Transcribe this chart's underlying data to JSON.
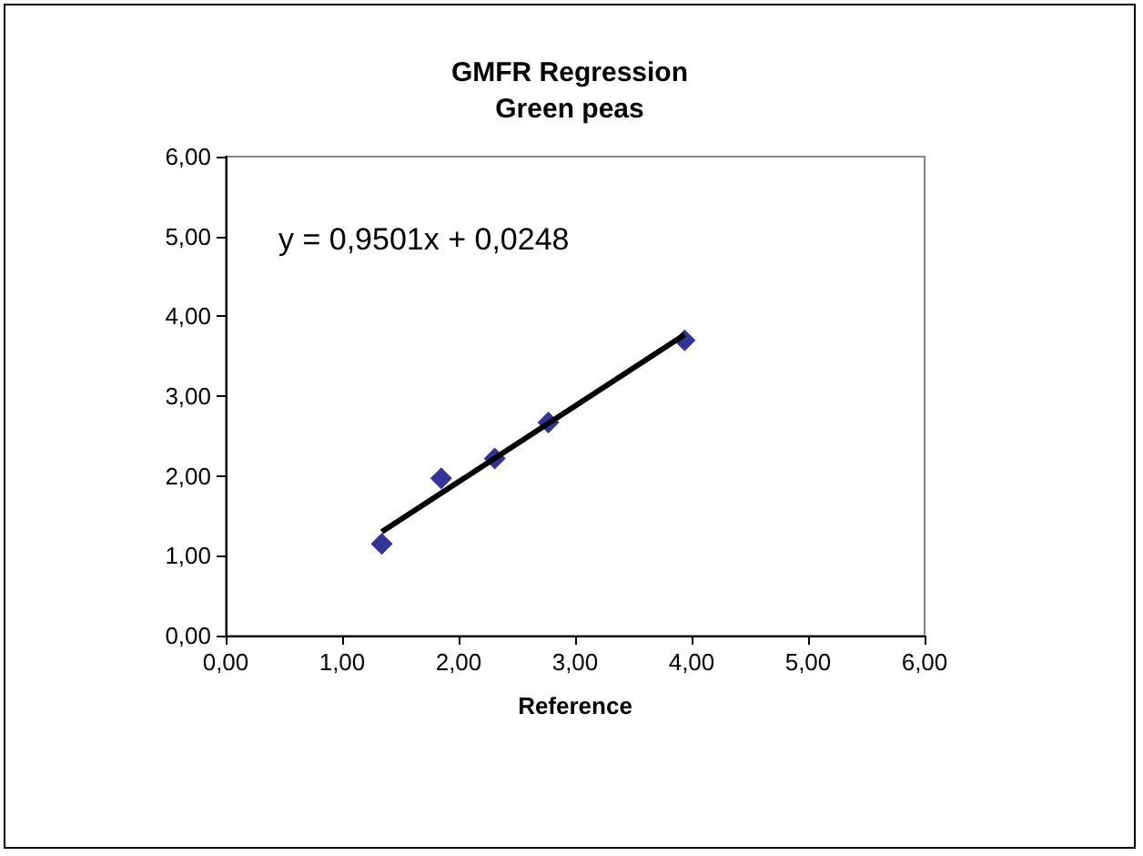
{
  "chart_data": {
    "type": "scatter",
    "title": "GMFR Regression\nGreen peas",
    "xlabel": "Reference",
    "annotations": [
      "y = 0,9501x + 0,0248"
    ],
    "marker": "diamond",
    "grid": false,
    "x": [
      1.34,
      1.85,
      2.31,
      2.77,
      3.94
    ],
    "series": [
      {
        "color": "#000080",
        "values": [
          1.15,
          1.97,
          2.22,
          2.67,
          3.7
        ]
      },
      {
        "type": "line",
        "color": "#000000",
        "marker": "none",
        "x": [
          1.34,
          3.94
        ],
        "values": [
          1.3,
          3.77
        ]
      }
    ],
    "xlim": [
      0,
      6
    ],
    "ylim": [
      0,
      6
    ],
    "xticks": [
      {
        "value": 0,
        "label": "0,00"
      },
      {
        "value": 1,
        "label": "1,00"
      },
      {
        "value": 2,
        "label": "2,00"
      },
      {
        "value": 3,
        "label": "3,00"
      },
      {
        "value": 4,
        "label": "4,00"
      },
      {
        "value": 5,
        "label": "5,00"
      },
      {
        "value": 6,
        "label": "6,00"
      }
    ],
    "yticks": [
      {
        "value": 0,
        "label": "0,00"
      },
      {
        "value": 1,
        "label": "1,00"
      },
      {
        "value": 2,
        "label": "2,00"
      },
      {
        "value": 3,
        "label": "3,00"
      },
      {
        "value": 4,
        "label": "4,00"
      },
      {
        "value": 5,
        "label": "5,00"
      },
      {
        "value": 6,
        "label": "6,00"
      }
    ]
  }
}
